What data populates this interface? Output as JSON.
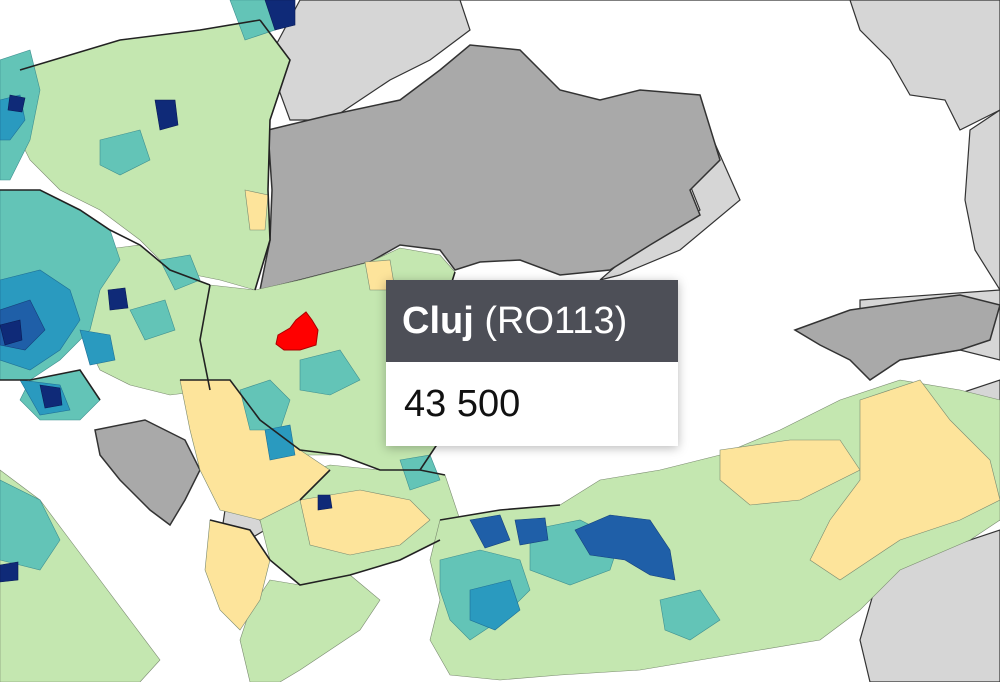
{
  "tooltip": {
    "region_name": "Cluj",
    "region_code": "(RO113)",
    "value": "43 500"
  },
  "map": {
    "highlighted_region": "RO113",
    "colors": {
      "sea": "#ffffff",
      "no_data_country": "#a9a9a9",
      "outside_country": "#d6d6d6",
      "class_1": "#fde49b",
      "class_2": "#c4e7b0",
      "class_3": "#63c4b7",
      "class_4": "#2a9abf",
      "class_5": "#1f5fa8",
      "class_6": "#0f2a78",
      "highlight": "#ff0000",
      "borders": "#333333"
    }
  }
}
